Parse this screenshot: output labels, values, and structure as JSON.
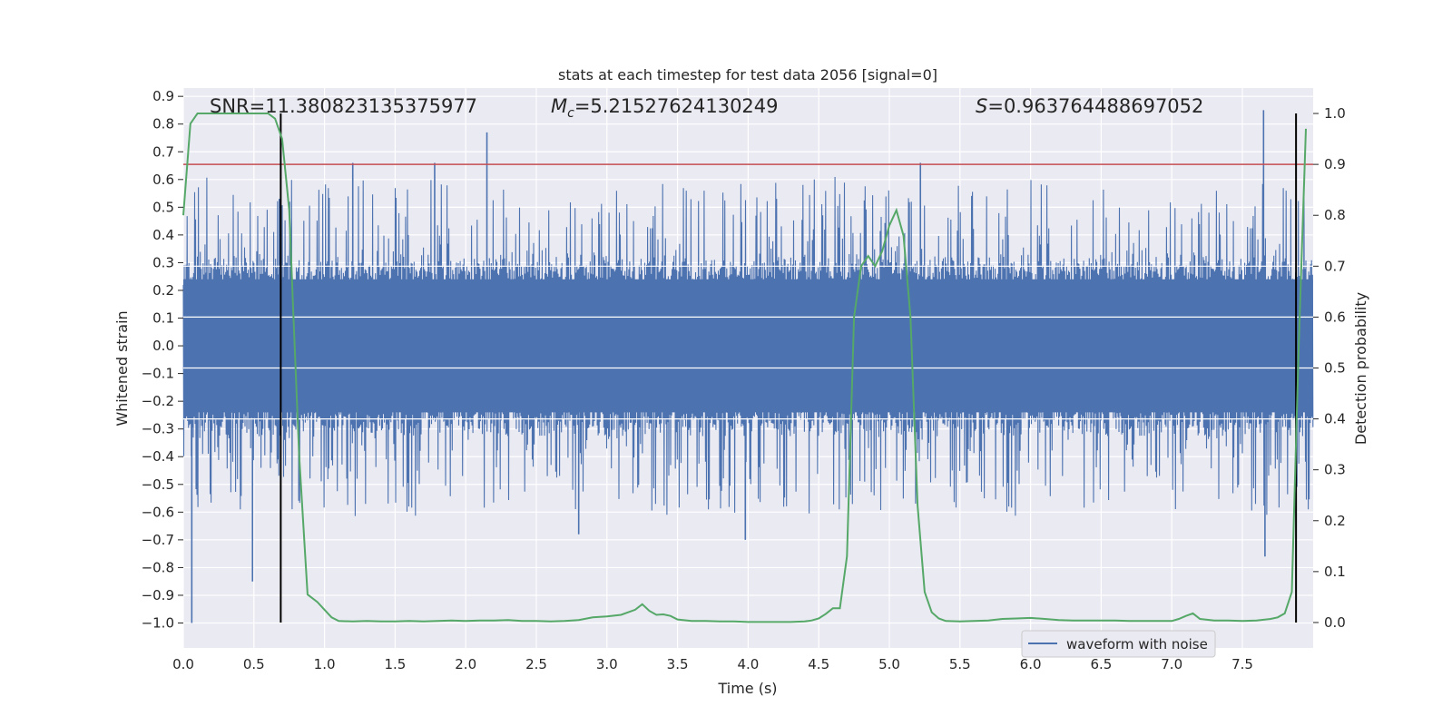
{
  "chart_data": {
    "type": "line",
    "title": "stats at each timestep for test data 2056 [signal=0]",
    "xlabel": "Time (s)",
    "ylabel": "Whitened strain",
    "ylabel_right": "Detection probability",
    "xlim": [
      0.0,
      8.0
    ],
    "ylim": [
      -1.09,
      0.93
    ],
    "ylim_right": [
      -0.05,
      1.05
    ],
    "x_ticks": [
      0.0,
      0.5,
      1.0,
      1.5,
      2.0,
      2.5,
      3.0,
      3.5,
      4.0,
      4.5,
      5.0,
      5.5,
      6.0,
      6.5,
      7.0,
      7.5
    ],
    "x_tick_labels": [
      "0.0",
      "0.5",
      "1.0",
      "1.5",
      "2.0",
      "2.5",
      "3.0",
      "3.5",
      "4.0",
      "4.5",
      "5.0",
      "5.5",
      "6.0",
      "6.5",
      "7.0",
      "7.5"
    ],
    "y_ticks": [
      0.9,
      0.8,
      0.7,
      0.6,
      0.5,
      0.4,
      0.3,
      0.2,
      0.1,
      0.0,
      -0.1,
      -0.2,
      -0.3,
      -0.4,
      -0.5,
      -0.6,
      -0.7,
      -0.8,
      -0.9,
      -1.0
    ],
    "y_tick_labels": [
      "0.9",
      "0.8",
      "0.7",
      "0.6",
      "0.5",
      "0.4",
      "0.3",
      "0.2",
      "0.1",
      "0.0",
      "−0.1",
      "−0.2",
      "−0.3",
      "−0.4",
      "−0.5",
      "−0.6",
      "−0.7",
      "−0.8",
      "−0.9",
      "−1.0"
    ],
    "y_right_ticks": [
      1.0,
      0.9,
      0.8,
      0.7,
      0.6,
      0.5,
      0.4,
      0.3,
      0.2,
      0.1,
      0.0
    ],
    "y_right_tick_labels": [
      "1.0",
      "0.9",
      "0.8",
      "0.7",
      "0.6",
      "0.5",
      "0.4",
      "0.3",
      "0.2",
      "0.1",
      "0.0"
    ],
    "annotations": {
      "snr": "SNR=11.380823135375977",
      "mc_prefix": "M",
      "mc_sub": "c",
      "mc_value": "=5.21527624130249",
      "s_prefix": "S",
      "s_value": "=0.963764488697052"
    },
    "series": [
      {
        "name": "waveform with noise",
        "color": "#4c72b0",
        "axis": "left",
        "x_range": [
          0.0,
          8.0
        ],
        "noise_core": 0.27,
        "noise_peak": 0.6,
        "spikes": [
          {
            "x": 0.06,
            "y": -1.0
          },
          {
            "x": 0.49,
            "y": -0.85
          },
          {
            "x": 0.68,
            "y": 0.53
          },
          {
            "x": 1.2,
            "y": 0.66
          },
          {
            "x": 1.78,
            "y": 0.66
          },
          {
            "x": 2.15,
            "y": 0.77
          },
          {
            "x": 2.8,
            "y": -0.68
          },
          {
            "x": 3.98,
            "y": -0.7
          },
          {
            "x": 5.22,
            "y": 0.66
          },
          {
            "x": 7.65,
            "y": 0.85
          },
          {
            "x": 7.66,
            "y": -0.76
          }
        ]
      },
      {
        "name": "detection probability",
        "color": "#55a868",
        "axis": "right",
        "x": [
          0.0,
          0.05,
          0.1,
          0.2,
          0.3,
          0.4,
          0.5,
          0.6,
          0.65,
          0.7,
          0.75,
          0.78,
          0.82,
          0.88,
          0.95,
          1.0,
          1.05,
          1.1,
          1.2,
          1.3,
          1.4,
          1.5,
          1.6,
          1.7,
          1.8,
          1.9,
          2.0,
          2.1,
          2.2,
          2.3,
          2.4,
          2.5,
          2.6,
          2.7,
          2.8,
          2.9,
          3.0,
          3.1,
          3.2,
          3.25,
          3.3,
          3.35,
          3.4,
          3.45,
          3.5,
          3.6,
          3.7,
          3.8,
          3.9,
          4.0,
          4.1,
          4.2,
          4.3,
          4.4,
          4.45,
          4.5,
          4.55,
          4.6,
          4.65,
          4.7,
          4.75,
          4.8,
          4.85,
          4.9,
          4.95,
          5.0,
          5.05,
          5.1,
          5.15,
          5.2,
          5.25,
          5.3,
          5.35,
          5.4,
          5.5,
          5.6,
          5.7,
          5.8,
          5.9,
          6.0,
          6.1,
          6.2,
          6.3,
          6.4,
          6.5,
          6.6,
          6.7,
          6.8,
          6.9,
          7.0,
          7.05,
          7.1,
          7.15,
          7.2,
          7.3,
          7.4,
          7.5,
          7.6,
          7.7,
          7.75,
          7.8,
          7.85,
          7.9,
          7.95
        ],
        "values": [
          0.8,
          0.98,
          1.0,
          1.0,
          1.0,
          1.0,
          1.0,
          1.0,
          0.99,
          0.95,
          0.81,
          0.6,
          0.33,
          0.055,
          0.04,
          0.025,
          0.01,
          0.003,
          0.002,
          0.003,
          0.002,
          0.002,
          0.003,
          0.002,
          0.003,
          0.004,
          0.003,
          0.004,
          0.004,
          0.005,
          0.003,
          0.003,
          0.002,
          0.003,
          0.005,
          0.01,
          0.012,
          0.015,
          0.025,
          0.036,
          0.023,
          0.015,
          0.016,
          0.013,
          0.006,
          0.003,
          0.003,
          0.002,
          0.002,
          0.001,
          0.001,
          0.001,
          0.001,
          0.002,
          0.004,
          0.008,
          0.017,
          0.028,
          0.028,
          0.13,
          0.6,
          0.7,
          0.72,
          0.7,
          0.73,
          0.78,
          0.81,
          0.76,
          0.6,
          0.23,
          0.06,
          0.02,
          0.008,
          0.003,
          0.002,
          0.003,
          0.004,
          0.007,
          0.008,
          0.009,
          0.007,
          0.005,
          0.004,
          0.004,
          0.004,
          0.004,
          0.003,
          0.003,
          0.003,
          0.003,
          0.007,
          0.013,
          0.018,
          0.007,
          0.004,
          0.004,
          0.003,
          0.004,
          0.007,
          0.01,
          0.018,
          0.06,
          0.55,
          0.97
        ]
      }
    ],
    "hlines": [
      {
        "y": 0.9,
        "axis": "right",
        "color": "#c44e52"
      }
    ],
    "vlines": [
      {
        "x": 0.69,
        "y_range": [
          0.0,
          1.0
        ],
        "axis": "right",
        "color": "#000000"
      },
      {
        "x": 7.88,
        "y_range": [
          0.0,
          1.0
        ],
        "axis": "right",
        "color": "#000000"
      }
    ],
    "legend": {
      "label": "waveform with noise",
      "position": "lower-right"
    }
  }
}
